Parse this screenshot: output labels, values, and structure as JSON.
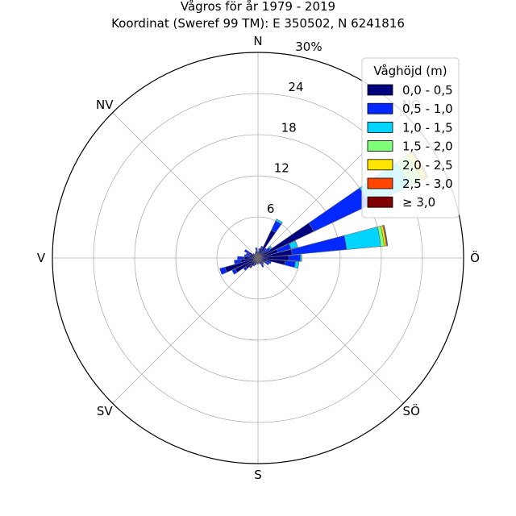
{
  "chart_data": {
    "type": "windrose",
    "title": "Vågros för år 1979 - 2019",
    "subtitle": "Koordinat (Sweref 99 TM): E 350502, N 6241816",
    "directions": [
      "N",
      "NV",
      "V",
      "SV",
      "S",
      "SÖ",
      "Ö",
      "NÖ"
    ],
    "radial_ticks": [
      "6",
      "12",
      "18",
      "24",
      "30%"
    ],
    "r_max_percent": 30,
    "grid": true,
    "legend": {
      "title": "Våghöjd (m)",
      "placement": "top-right",
      "entries": [
        {
          "label": "0,0 - 0,5",
          "color": "#00007f"
        },
        {
          "label": "0,5 - 1,0",
          "color": "#0028ff"
        },
        {
          "label": "1,0 - 1,5",
          "color": "#00d4ff"
        },
        {
          "label": "1,5 - 2,0",
          "color": "#7dff7a"
        },
        {
          "label": "2,0 - 2,5",
          "color": "#ffe600"
        },
        {
          "label": "2,5 - 3,0",
          "color": "#ff4500"
        },
        {
          "label": "≥ 3,0",
          "color": "#7f0000"
        }
      ]
    },
    "sector_width_deg": 10,
    "sectors": [
      {
        "direction_deg": 0,
        "cumulative": [
          0.6,
          0.9
        ]
      },
      {
        "direction_deg": 10,
        "cumulative": [
          1.0,
          1.5
        ]
      },
      {
        "direction_deg": 20,
        "cumulative": [
          0.7,
          1.0
        ]
      },
      {
        "direction_deg": 30,
        "cumulative": [
          0.6,
          0.8
        ]
      },
      {
        "direction_deg": 40,
        "cumulative": [
          0.5,
          0.7
        ]
      },
      {
        "direction_deg": 50,
        "cumulative": [
          0.6,
          0.9
        ]
      },
      {
        "direction_deg": 60,
        "cumulative": [
          1.5,
          2.2
        ]
      },
      {
        "direction_deg": 70,
        "cumulative": [
          1.2,
          1.8
        ]
      },
      {
        "direction_deg": 80,
        "cumulative": [
          1.3,
          2.0
        ]
      },
      {
        "direction_deg": 90,
        "cumulative": [
          2.0,
          3.0
        ]
      },
      {
        "direction_deg": 100,
        "cumulative": [
          2.5,
          3.5
        ]
      },
      {
        "direction_deg": 110,
        "cumulative": [
          5.0,
          5.8
        ]
      },
      {
        "direction_deg": 120,
        "cumulative": [
          3.7,
          4.2
        ]
      },
      {
        "direction_deg": 130,
        "cumulative": [
          2.2,
          2.6
        ]
      },
      {
        "direction_deg": 140,
        "cumulative": [
          1.5,
          1.8
        ]
      },
      {
        "direction_deg": 150,
        "cumulative": [
          1.0,
          1.3
        ]
      },
      {
        "direction_deg": 160,
        "cumulative": [
          0.8,
          1.1
        ]
      },
      {
        "direction_deg": 170,
        "cumulative": [
          0.6,
          0.8
        ]
      },
      {
        "direction_deg": 180,
        "cumulative": [
          0.6,
          0.9
        ]
      },
      {
        "direction_deg": 190,
        "cumulative": [
          0.5,
          0.7
        ]
      },
      {
        "direction_deg": 200,
        "cumulative": [
          0.6,
          0.9
        ]
      },
      {
        "direction_deg": 210,
        "cumulative": [
          1.0,
          1.5
        ]
      },
      {
        "direction_deg": 220,
        "cumulative": [
          0.8,
          1.2
        ]
      },
      {
        "direction_deg": 230,
        "cumulative": [
          0.6,
          1.0
        ]
      },
      {
        "direction_deg": 240,
        "cumulative": [
          1.2,
          1.8
        ]
      },
      {
        "direction_deg": 250,
        "cumulative": [
          1.3,
          2.0
        ]
      },
      {
        "direction_deg": 260,
        "cumulative": [
          4.0,
          5.5,
          6.0
        ]
      },
      {
        "direction_deg": 270,
        "cumulative": [
          4.5,
          6.2,
          6.4
        ]
      },
      {
        "direction_deg": 280,
        "cumulative": [
          5.0,
          13.0,
          18.0,
          18.5,
          18.8,
          18.9,
          19.0
        ]
      },
      {
        "direction_deg": 290,
        "cumulative": [
          3.0,
          5.0,
          6.0
        ]
      },
      {
        "direction_deg": 300,
        "cumulative": [
          9.0,
          18.0,
          24.5,
          26.5,
          27.2,
          27.4,
          27.5
        ]
      },
      {
        "direction_deg": 310,
        "cumulative": [
          1.5,
          2.2,
          2.5
        ]
      },
      {
        "direction_deg": 320,
        "cumulative": [
          1.0,
          1.8
        ]
      },
      {
        "direction_deg": 330,
        "cumulative": [
          4.5,
          6.0,
          6.3
        ]
      },
      {
        "direction_deg": 340,
        "cumulative": [
          1.5,
          1.8
        ]
      },
      {
        "direction_deg": 350,
        "cumulative": [
          1.0,
          1.4
        ]
      }
    ]
  }
}
